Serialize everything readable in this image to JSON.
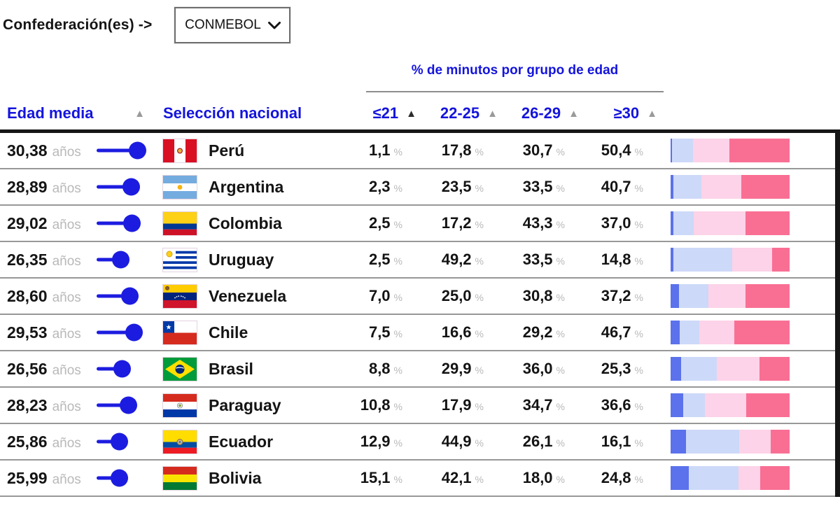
{
  "controls": {
    "label": "Confederación(es) ->",
    "dropdown": {
      "value": "CONMEBOL"
    }
  },
  "table": {
    "group_header": "% de minutos por grupo de edad",
    "col_age": "Edad media",
    "col_team": "Selección nacional",
    "age_unit": "años",
    "percent_sign": "%",
    "age_groups": [
      {
        "label": "≤21",
        "sort_active": true
      },
      {
        "label": "22-25",
        "sort_active": false
      },
      {
        "label": "26-29",
        "sort_active": false
      },
      {
        "label": "≥30",
        "sort_active": false
      }
    ]
  },
  "colors": {
    "accent_blue": "#1414dd",
    "lollipop_blue": "#1c1ce0",
    "bar_under21": "#5b72ec",
    "bar_22_25": "#cdd9f8",
    "bar_26_29": "#fcd3e8",
    "bar_30plus": "#f96f94",
    "muted_gray": "#b9b9b9"
  },
  "chart_data": {
    "type": "table",
    "title": "% de minutos por grupo de edad",
    "filter": {
      "label": "Confederación(es)",
      "value": "CONMEBOL"
    },
    "columns": [
      "Edad media",
      "Selección nacional",
      "≤21",
      "22-25",
      "26-29",
      "≥30"
    ],
    "sort": {
      "column": "≤21",
      "direction": "asc"
    },
    "bar_stack_order": [
      "≤21",
      "22-25",
      "26-29",
      "≥30"
    ],
    "rows": [
      {
        "team": "Perú",
        "flag": "peru",
        "avg_age_label": "30,38",
        "avg_age": 30.38,
        "pct_labels": [
          "1,1",
          "17,8",
          "30,7",
          "50,4"
        ],
        "pct": [
          1.1,
          17.8,
          30.7,
          50.4
        ]
      },
      {
        "team": "Argentina",
        "flag": "argentina",
        "avg_age_label": "28,89",
        "avg_age": 28.89,
        "pct_labels": [
          "2,3",
          "23,5",
          "33,5",
          "40,7"
        ],
        "pct": [
          2.3,
          23.5,
          33.5,
          40.7
        ]
      },
      {
        "team": "Colombia",
        "flag": "colombia",
        "avg_age_label": "29,02",
        "avg_age": 29.02,
        "pct_labels": [
          "2,5",
          "17,2",
          "43,3",
          "37,0"
        ],
        "pct": [
          2.5,
          17.2,
          43.3,
          37.0
        ]
      },
      {
        "team": "Uruguay",
        "flag": "uruguay",
        "avg_age_label": "26,35",
        "avg_age": 26.35,
        "pct_labels": [
          "2,5",
          "49,2",
          "33,5",
          "14,8"
        ],
        "pct": [
          2.5,
          49.2,
          33.5,
          14.8
        ]
      },
      {
        "team": "Venezuela",
        "flag": "venezuela",
        "avg_age_label": "28,60",
        "avg_age": 28.6,
        "pct_labels": [
          "7,0",
          "25,0",
          "30,8",
          "37,2"
        ],
        "pct": [
          7.0,
          25.0,
          30.8,
          37.2
        ]
      },
      {
        "team": "Chile",
        "flag": "chile",
        "avg_age_label": "29,53",
        "avg_age": 29.53,
        "pct_labels": [
          "7,5",
          "16,6",
          "29,2",
          "46,7"
        ],
        "pct": [
          7.5,
          16.6,
          29.2,
          46.7
        ]
      },
      {
        "team": "Brasil",
        "flag": "brasil",
        "avg_age_label": "26,56",
        "avg_age": 26.56,
        "pct_labels": [
          "8,8",
          "29,9",
          "36,0",
          "25,3"
        ],
        "pct": [
          8.8,
          29.9,
          36.0,
          25.3
        ]
      },
      {
        "team": "Paraguay",
        "flag": "paraguay",
        "avg_age_label": "28,23",
        "avg_age": 28.23,
        "pct_labels": [
          "10,8",
          "17,9",
          "34,7",
          "36,6"
        ],
        "pct": [
          10.8,
          17.9,
          34.7,
          36.6
        ]
      },
      {
        "team": "Ecuador",
        "flag": "ecuador",
        "avg_age_label": "25,86",
        "avg_age": 25.86,
        "pct_labels": [
          "12,9",
          "44,9",
          "26,1",
          "16,1"
        ],
        "pct": [
          12.9,
          44.9,
          26.1,
          16.1
        ]
      },
      {
        "team": "Bolivia",
        "flag": "bolivia",
        "avg_age_label": "25,99",
        "avg_age": 25.99,
        "pct_labels": [
          "15,1",
          "42,1",
          "18,0",
          "24,8"
        ],
        "pct": [
          15.1,
          42.1,
          18.0,
          24.8
        ]
      }
    ]
  }
}
